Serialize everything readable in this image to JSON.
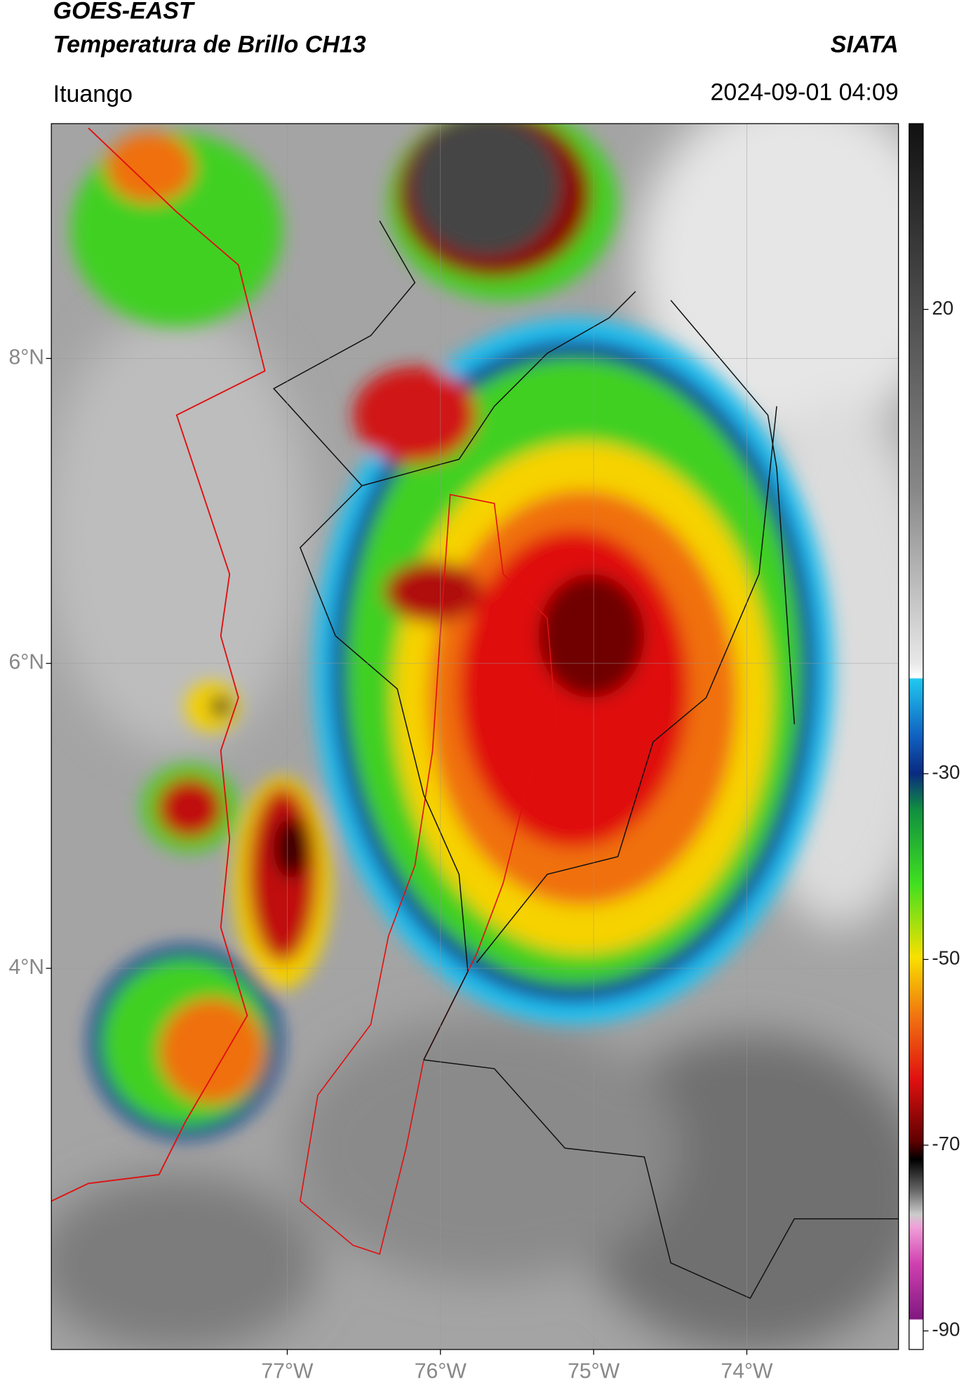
{
  "header": {
    "title": "GOES-EAST",
    "subtitle": "Temperatura de Brillo CH13",
    "source": "SIATA",
    "location": "Ituango",
    "timestamp": "2024-09-01 04:09"
  },
  "map": {
    "xlim": [
      -78.54,
      -73.01
    ],
    "ylim": [
      1.5,
      9.54
    ],
    "xticks": [
      {
        "value": -77,
        "label": "77°W"
      },
      {
        "value": -76,
        "label": "76°W"
      },
      {
        "value": -75,
        "label": "75°W"
      },
      {
        "value": -74,
        "label": "74°W"
      }
    ],
    "yticks": [
      {
        "value": 8,
        "label": "8°N"
      },
      {
        "value": 6,
        "label": "6°N"
      },
      {
        "value": 4,
        "label": "4°N"
      }
    ]
  },
  "colorbar": {
    "lim": [
      -92,
      40
    ],
    "ticks": [
      20,
      -30,
      -50,
      -70,
      -90
    ]
  }
}
